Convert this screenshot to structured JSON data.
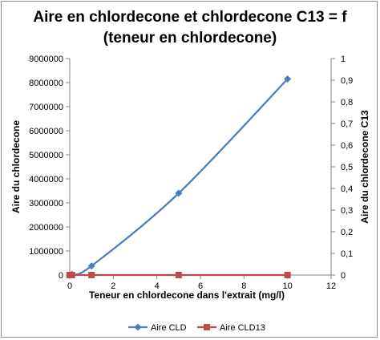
{
  "chart_data": {
    "type": "scatter",
    "title_line1": "Aire en chlordecone et chlordecone C13 = f",
    "title_line2": "(teneur en chlordecone)",
    "xlabel": "Teneur en chlordecone dans l'extrait (mg/l)",
    "ylabel": "Aire du chlordecone",
    "y2label": "Aire du chlordecone C13",
    "xlim": [
      0,
      12
    ],
    "ylim": [
      0,
      9000000
    ],
    "y2lim": [
      0,
      1
    ],
    "x_ticks": [
      "0",
      "2",
      "4",
      "6",
      "8",
      "10",
      "12"
    ],
    "y_ticks": [
      "0",
      "1000000",
      "2000000",
      "3000000",
      "4000000",
      "5000000",
      "6000000",
      "7000000",
      "8000000",
      "9000000"
    ],
    "y2_ticks": [
      "0",
      "0,1",
      "0,2",
      "0,3",
      "0,4",
      "0,5",
      "0,6",
      "0,7",
      "0,8",
      "0,9",
      "1"
    ],
    "grid": false,
    "legend_position": "bottom",
    "series": [
      {
        "name": "Aire CLD",
        "axis": "left",
        "color": "#4a7ebb",
        "marker": "diamond",
        "x": [
          0,
          0.1,
          1,
          5,
          10
        ],
        "y": [
          0,
          30000,
          380000,
          3400000,
          8150000
        ]
      },
      {
        "name": "Aire CLD13",
        "axis": "right",
        "color": "#be4b48",
        "marker": "square",
        "x": [
          0,
          0.1,
          1,
          5,
          10
        ],
        "y": [
          0,
          0,
          0,
          0,
          0
        ]
      }
    ]
  }
}
